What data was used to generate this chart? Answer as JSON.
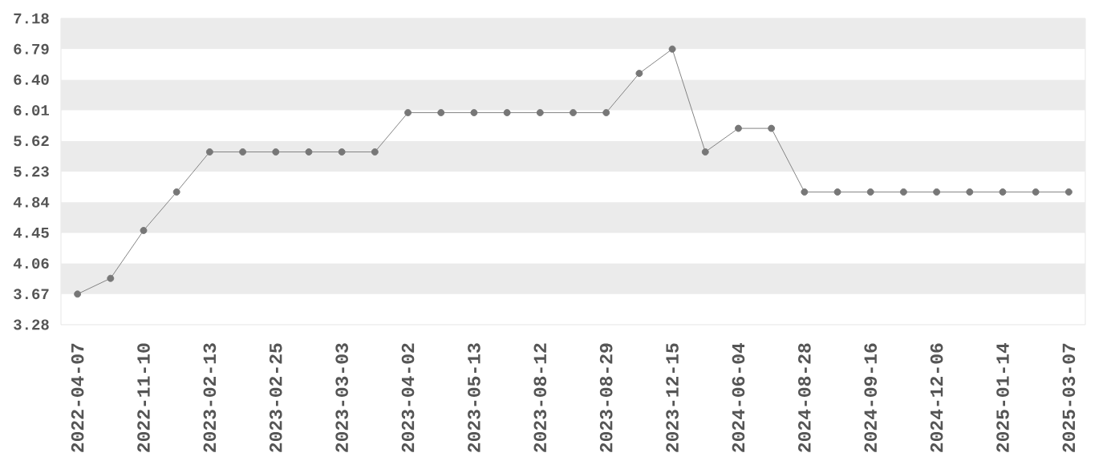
{
  "chart_data": {
    "type": "line",
    "categories": [
      "2022-04-07",
      null,
      "2022-11-10",
      null,
      "2023-02-13",
      null,
      "2023-02-25",
      null,
      "2023-03-03",
      null,
      "2023-04-02",
      null,
      "2023-05-13",
      null,
      "2023-08-12",
      null,
      "2023-08-29",
      null,
      "2023-12-15",
      null,
      "2024-06-04",
      null,
      "2024-08-28",
      null,
      "2024-09-16",
      null,
      "2024-12-06",
      null,
      "2025-01-14",
      null,
      "2025-03-07"
    ],
    "series": [
      {
        "color": "#777777",
        "values": [
          3.67,
          3.87,
          4.48,
          4.97,
          5.48,
          5.48,
          5.48,
          5.48,
          5.48,
          5.48,
          5.98,
          5.98,
          5.98,
          5.98,
          5.98,
          5.98,
          5.98,
          6.48,
          6.79,
          5.48,
          5.78,
          5.78,
          4.97,
          4.97,
          4.97,
          4.97,
          4.97,
          4.97,
          4.97,
          4.97,
          4.97
        ]
      }
    ],
    "ylim": [
      3.28,
      7.18
    ],
    "yticks": [
      3.28,
      3.67,
      4.06,
      4.45,
      4.84,
      5.23,
      5.62,
      6.01,
      {
        "value": 6.4,
        "label": "6.40"
      },
      6.79,
      7.18
    ],
    "bands": [
      {
        "axis": "y",
        "from": 3.67,
        "to": 4.06,
        "color": "#ebebeb"
      },
      {
        "axis": "y",
        "from": 4.45,
        "to": 4.84,
        "color": "#ebebeb"
      },
      {
        "axis": "y",
        "from": 5.23,
        "to": 5.62,
        "color": "#ebebeb"
      },
      {
        "axis": "y",
        "from": 6.01,
        "to": 6.4,
        "color": "#ebebeb"
      },
      {
        "axis": "y",
        "from": 6.79,
        "to": 7.18,
        "color": "#ebebeb"
      }
    ],
    "marker": "circle",
    "line_style": "solid"
  }
}
